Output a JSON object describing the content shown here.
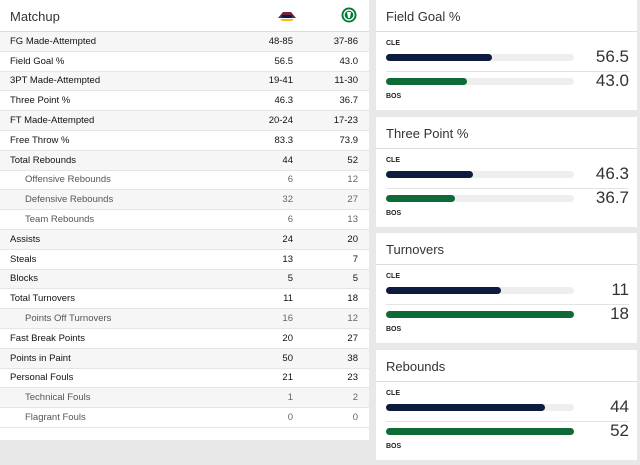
{
  "matchup": {
    "title": "Matchup",
    "rows": [
      {
        "label": "FG Made-Attempted",
        "a": "48-85",
        "b": "37-86",
        "sub": false
      },
      {
        "label": "Field Goal %",
        "a": "56.5",
        "b": "43.0",
        "sub": false
      },
      {
        "label": "3PT Made-Attempted",
        "a": "19-41",
        "b": "11-30",
        "sub": false
      },
      {
        "label": "Three Point %",
        "a": "46.3",
        "b": "36.7",
        "sub": false
      },
      {
        "label": "FT Made-Attempted",
        "a": "20-24",
        "b": "17-23",
        "sub": false
      },
      {
        "label": "Free Throw %",
        "a": "83.3",
        "b": "73.9",
        "sub": false
      },
      {
        "label": "Total Rebounds",
        "a": "44",
        "b": "52",
        "sub": false
      },
      {
        "label": "Offensive Rebounds",
        "a": "6",
        "b": "12",
        "sub": true
      },
      {
        "label": "Defensive Rebounds",
        "a": "32",
        "b": "27",
        "sub": true
      },
      {
        "label": "Team Rebounds",
        "a": "6",
        "b": "13",
        "sub": true
      },
      {
        "label": "Assists",
        "a": "24",
        "b": "20",
        "sub": false
      },
      {
        "label": "Steals",
        "a": "13",
        "b": "7",
        "sub": false
      },
      {
        "label": "Blocks",
        "a": "5",
        "b": "5",
        "sub": false
      },
      {
        "label": "Total Turnovers",
        "a": "11",
        "b": "18",
        "sub": false
      },
      {
        "label": "Points Off Turnovers",
        "a": "16",
        "b": "12",
        "sub": true
      },
      {
        "label": "Fast Break Points",
        "a": "20",
        "b": "27",
        "sub": false
      },
      {
        "label": "Points in Paint",
        "a": "50",
        "b": "38",
        "sub": false
      },
      {
        "label": "Personal Fouls",
        "a": "21",
        "b": "23",
        "sub": false
      },
      {
        "label": "Technical Fouls",
        "a": "1",
        "b": "2",
        "sub": true
      },
      {
        "label": "Flagrant Fouls",
        "a": "0",
        "b": "0",
        "sub": true
      }
    ]
  },
  "colors": {
    "cle": "#0d1b3e",
    "bos": "#0e6b35",
    "track": "#eeeeee"
  },
  "cards": [
    {
      "title": "Field Goal %",
      "team_a": "CLE",
      "team_b": "BOS",
      "a": "56.5",
      "b": "43.0",
      "a_frac": 0.565,
      "b_frac": 0.43
    },
    {
      "title": "Three Point %",
      "team_a": "CLE",
      "team_b": "BOS",
      "a": "46.3",
      "b": "36.7",
      "a_frac": 0.463,
      "b_frac": 0.367
    },
    {
      "title": "Turnovers",
      "team_a": "CLE",
      "team_b": "BOS",
      "a": "11",
      "b": "18",
      "a_frac": 0.611,
      "b_frac": 1.0
    },
    {
      "title": "Rebounds",
      "team_a": "CLE",
      "team_b": "BOS",
      "a": "44",
      "b": "52",
      "a_frac": 0.846,
      "b_frac": 1.0
    }
  ]
}
